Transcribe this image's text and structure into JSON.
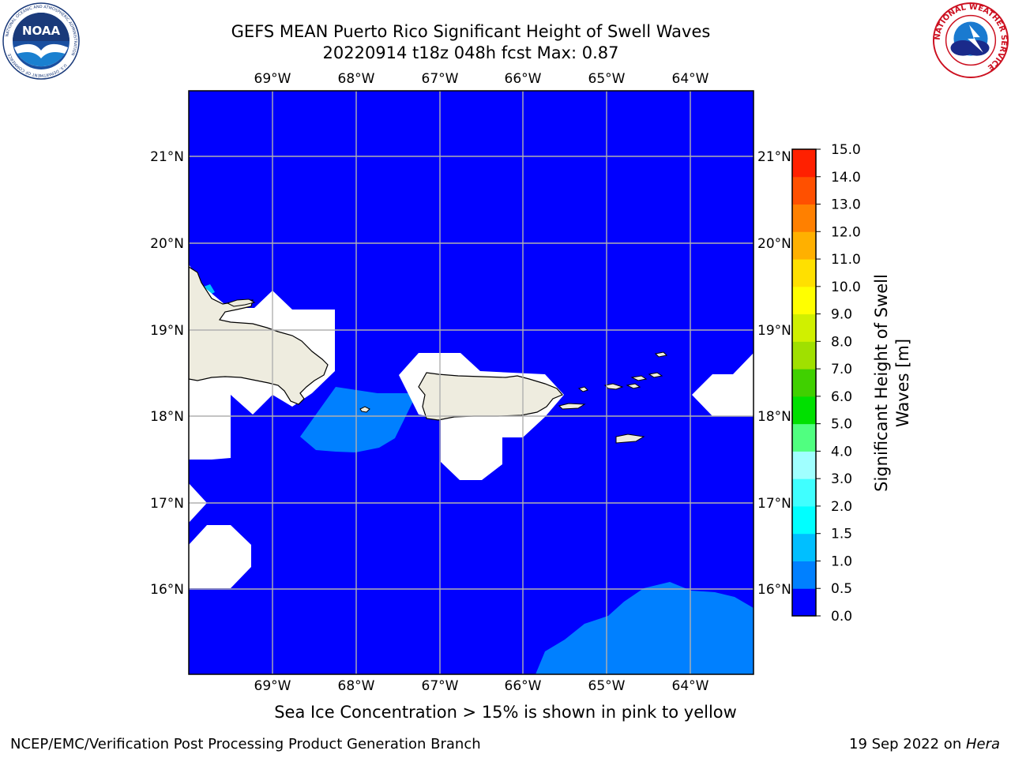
{
  "header": {
    "title_line1": "GEFS MEAN Puerto Rico Significant Height of Swell Waves",
    "title_line2": "20220914 t18z 048h fcst   Max: 0.87"
  },
  "map": {
    "lon_labels": [
      "69°W",
      "68°W",
      "67°W",
      "66°W",
      "65°W",
      "64°W"
    ],
    "lat_labels": [
      "21°N",
      "20°N",
      "19°N",
      "18°N",
      "17°N",
      "16°N"
    ],
    "ocean_color": "#0000ff",
    "swell_0_5_color": "#0080ff",
    "swell_1_0_color": "#00bfff",
    "land_color": "#eeecdf",
    "nodata_color": "#ffffff",
    "grid_color": "#b0b0b0"
  },
  "colorbar": {
    "label": "Significant Height of Swell Waves [m]",
    "levels": [
      "0.0",
      "0.5",
      "1.0",
      "1.5",
      "2.0",
      "3.0",
      "4.0",
      "5.0",
      "6.0",
      "7.0",
      "8.0",
      "9.0",
      "10.0",
      "11.0",
      "12.0",
      "13.0",
      "14.0",
      "15.0"
    ],
    "colors": [
      "#0000ff",
      "#0080ff",
      "#00bfff",
      "#00ffff",
      "#40ffff",
      "#a0ffff",
      "#50ff80",
      "#00e000",
      "#40d000",
      "#a0e000",
      "#d0f000",
      "#ffff00",
      "#ffe000",
      "#ffb000",
      "#ff8000",
      "#ff5000",
      "#ff2000",
      "#ff0000"
    ]
  },
  "caption": "Sea Ice Concentration > 15% is shown in pink to yellow",
  "footer": {
    "left": "NCEP/EMC/Verification Post Processing Product Generation Branch",
    "right_date": "19 Sep 2022 on ",
    "right_machine": "Hera"
  },
  "logos": {
    "noaa_text": "NOAA",
    "noaa_ring_text": "NATIONAL OCEANIC AND ATMOSPHERIC ADMINISTRATION",
    "noaa_ring_bottom": "U.S. DEPARTMENT OF COMMERCE",
    "nws_ring_text": "NATIONAL WEATHER SERVICE"
  }
}
